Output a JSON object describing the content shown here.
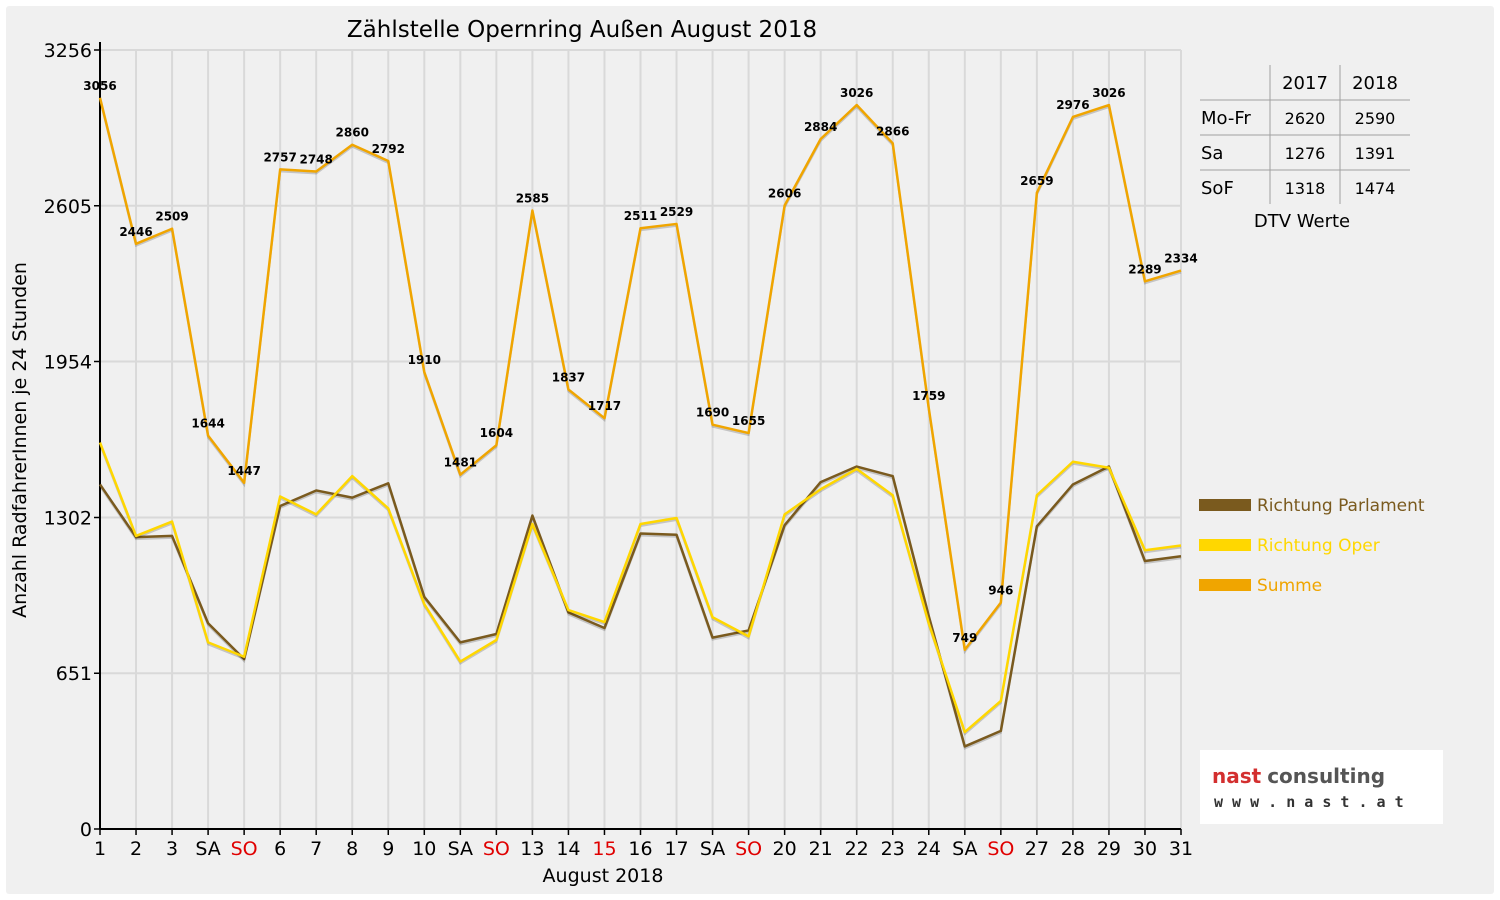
{
  "chart_data": {
    "type": "line",
    "title": "Zählstelle Opernring Außen August 2018",
    "xlabel": "August 2018",
    "ylabel": "Anzahl RadfahrerInnen je 24 Stunden",
    "ylim": [
      0,
      3256
    ],
    "yticks": [
      "0",
      "651",
      "1302",
      "1954",
      "2605",
      "3256"
    ],
    "grid": true,
    "categories": [
      "1",
      "2",
      "3",
      "SA",
      "SO",
      "6",
      "7",
      "8",
      "9",
      "10",
      "SA",
      "SO",
      "13",
      "14",
      "15",
      "16",
      "17",
      "SA",
      "SO",
      "20",
      "21",
      "22",
      "23",
      "24",
      "SA",
      "SO",
      "27",
      "28",
      "29",
      "30",
      "31"
    ],
    "highlight_categories": [
      4,
      11,
      14,
      18,
      25
    ],
    "highlight_color": "#e00000",
    "series": [
      {
        "name": "Richtung Parlament",
        "color": "#7a5a1e",
        "values": [
          1440,
          1220,
          1225,
          860,
          710,
          1350,
          1415,
          1385,
          1445,
          970,
          780,
          815,
          1310,
          905,
          840,
          1235,
          1230,
          800,
          830,
          1270,
          1450,
          1515,
          1475,
          890,
          345,
          410,
          1265,
          1440,
          1515,
          1120,
          1140
        ]
      },
      {
        "name": "Richtung Oper",
        "color": "#ffd700",
        "values": [
          1615,
          1225,
          1285,
          780,
          720,
          1390,
          1315,
          1475,
          1340,
          940,
          700,
          790,
          1275,
          915,
          865,
          1275,
          1300,
          885,
          805,
          1315,
          1420,
          1505,
          1395,
          860,
          405,
          535,
          1395,
          1535,
          1510,
          1165,
          1185
        ]
      },
      {
        "name": "Summe",
        "color": "#f0a500",
        "values": [
          3056,
          2446,
          2509,
          1644,
          1447,
          2757,
          2748,
          2860,
          2792,
          1910,
          1481,
          1604,
          2585,
          1837,
          1717,
          2511,
          2529,
          1690,
          1655,
          2606,
          2884,
          3026,
          2866,
          1759,
          749,
          946,
          2659,
          2976,
          3026,
          2289,
          2334
        ]
      }
    ],
    "data_labels": [
      "3056",
      "2446",
      "2509",
      "1644",
      "1447",
      "2757",
      "2748",
      "2860",
      "2792",
      "1910",
      "1481",
      "1604",
      "2585",
      "1837",
      "1717",
      "2511",
      "2529",
      "1690",
      "1655",
      "2606",
      "2884",
      "3026",
      "2866",
      "1759",
      "749",
      "946",
      "2659",
      "2976",
      "3026",
      "2289",
      "2334"
    ],
    "legend_placement": "right"
  },
  "dtv_table": {
    "columns": [
      "",
      "2017",
      "2018"
    ],
    "rows": [
      [
        "Mo-Fr",
        "2620",
        "2590"
      ],
      [
        "Sa",
        "1276",
        "1391"
      ],
      [
        "SoF",
        "1318",
        "1474"
      ]
    ],
    "caption": "DTV Werte"
  },
  "logo": {
    "name_part1": "nast",
    "name_part2": "consulting",
    "url": "w w w . n a s t . a t",
    "color1": "#d32f2f",
    "color2": "#555555"
  }
}
